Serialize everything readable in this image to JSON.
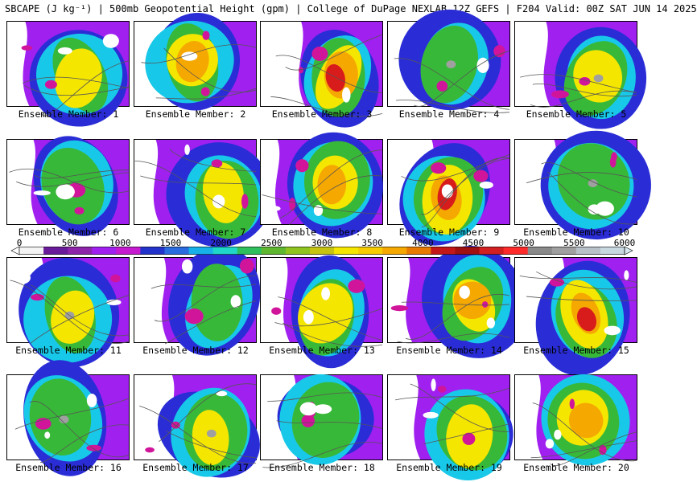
{
  "title": "SBCAPE (J kg⁻¹) | 500mb Geopotential Height (gpm) | College of DuPage NEXLAB 12Z GEFS | F204 Valid: 00Z SAT JUN 14 2025",
  "panel_label_prefix": "Ensemble Member: ",
  "members": [
    1,
    2,
    3,
    4,
    5,
    6,
    7,
    8,
    9,
    10,
    11,
    12,
    13,
    14,
    15,
    16,
    17,
    18,
    19,
    20
  ],
  "colorbar": {
    "ticks": [
      "0",
      "500",
      "1000",
      "1500",
      "2000",
      "2500",
      "3000",
      "3500",
      "4000",
      "4500",
      "5000",
      "5500",
      "6000"
    ],
    "min": 0,
    "max": 6000,
    "step": 250
  },
  "colors": {
    "low": "#7a1fa2",
    "violet": "#a020f0",
    "magenta": "#d0159b",
    "blue": "#2a2dd6",
    "cyan": "#18c8e8",
    "green": "#38b838",
    "yellow": "#f5e600",
    "orange": "#f5a800",
    "red": "#d81b1b",
    "darkred": "#8b0000",
    "gray": "#a0a0a0",
    "background": "#ffffff"
  }
}
